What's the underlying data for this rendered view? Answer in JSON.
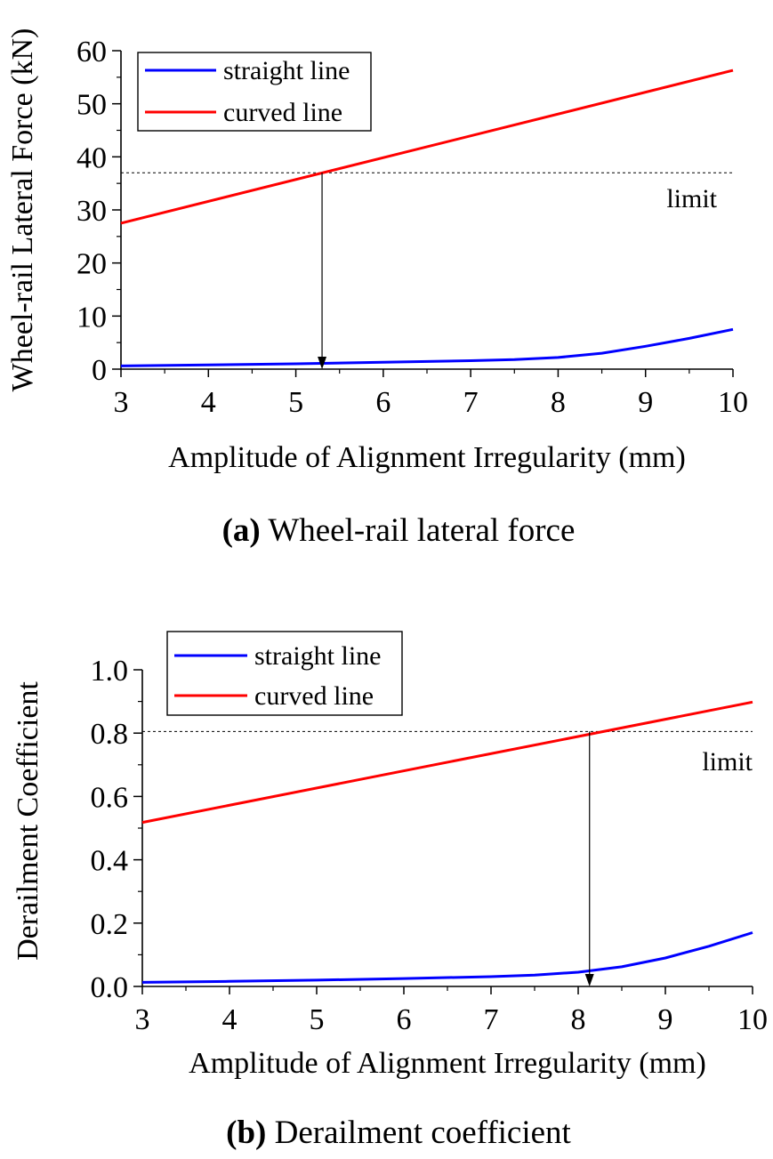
{
  "chart_data": [
    {
      "type": "line",
      "panel_label": "(a)",
      "caption": "Wheel-rail lateral force",
      "xlabel": "Amplitude of Alignment Irregularity (mm)",
      "ylabel": "Wheel-rail Lateral Force (kN)",
      "xlim": [
        3,
        10
      ],
      "ylim": [
        0,
        60
      ],
      "xticks": [
        3,
        4,
        5,
        6,
        7,
        8,
        9,
        10
      ],
      "yticks": [
        0,
        10,
        20,
        30,
        40,
        50,
        60
      ],
      "legend_position": "top-left",
      "limit": {
        "label": "limit",
        "value": 37,
        "x_intersect": 5.3
      },
      "series": [
        {
          "name": "straight line",
          "color": "#0000ff",
          "x": [
            3,
            4,
            5,
            6,
            7,
            7.5,
            8,
            8.5,
            9,
            9.5,
            10
          ],
          "y": [
            0.6,
            0.8,
            1.0,
            1.3,
            1.6,
            1.8,
            2.2,
            3.0,
            4.3,
            5.8,
            7.5
          ]
        },
        {
          "name": "curved line",
          "color": "#ff0000",
          "x": [
            3,
            10
          ],
          "y": [
            27.5,
            56.3
          ]
        }
      ]
    },
    {
      "type": "line",
      "panel_label": "(b)",
      "caption": "Derailment coefficient",
      "xlabel": "Amplitude of Alignment Irregularity (mm)",
      "ylabel": "Derailment Coefficient",
      "xlim": [
        3,
        10
      ],
      "ylim": [
        0,
        1.0
      ],
      "xticks": [
        3,
        4,
        5,
        6,
        7,
        8,
        9,
        10
      ],
      "yticks": [
        "0.0",
        "0.2",
        "0.4",
        "0.6",
        "0.8",
        "1.0"
      ],
      "legend_position": "top-left",
      "limit": {
        "label": "limit",
        "value": 0.805,
        "x_intersect": 8.13
      },
      "series": [
        {
          "name": "straight line",
          "color": "#0000ff",
          "x": [
            3,
            4,
            5,
            6,
            7,
            7.5,
            8,
            8.5,
            9,
            9.5,
            10
          ],
          "y": [
            0.013,
            0.016,
            0.02,
            0.025,
            0.031,
            0.036,
            0.045,
            0.062,
            0.09,
            0.127,
            0.17
          ]
        },
        {
          "name": "curved line",
          "color": "#ff0000",
          "x": [
            3,
            10
          ],
          "y": [
            0.518,
            0.898
          ]
        }
      ]
    }
  ]
}
